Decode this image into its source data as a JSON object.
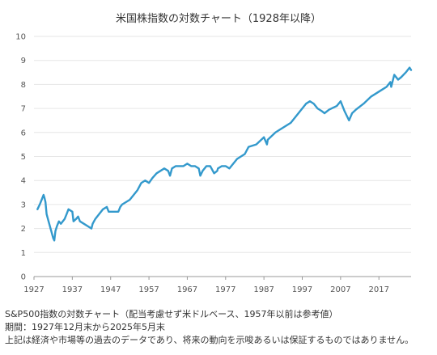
{
  "chart_data": {
    "type": "line",
    "title": "米国株指数の対数チャート（1928年以降）",
    "xlabel": "",
    "ylabel": "",
    "xlim": [
      1927,
      2025.4
    ],
    "ylim": [
      0,
      10
    ],
    "x_ticks": [
      "1927",
      "1937",
      "1947",
      "1957",
      "1967",
      "1977",
      "1987",
      "1997",
      "2007",
      "2017"
    ],
    "y_ticks": [
      "0",
      "1",
      "2",
      "3",
      "4",
      "5",
      "6",
      "7",
      "8",
      "9",
      "10"
    ],
    "grid": "horizontal",
    "legend": "none",
    "series": [
      {
        "color": "#3399cc",
        "x": [
          1927.9,
          1928.5,
          1929.0,
          1929.5,
          1929.7,
          1930.0,
          1930.3,
          1930.8,
          1931.5,
          1932.0,
          1932.3,
          1932.6,
          1933.0,
          1933.5,
          1934.0,
          1935.0,
          1935.5,
          1936.0,
          1937.0,
          1937.3,
          1938.0,
          1938.5,
          1939.0,
          1940.0,
          1941.0,
          1942.0,
          1942.3,
          1943.0,
          1944.0,
          1945.0,
          1946.0,
          1946.5,
          1947.0,
          1948.0,
          1949.0,
          1949.5,
          1950.0,
          1952.0,
          1954.0,
          1955.0,
          1956.0,
          1957.0,
          1957.9,
          1959.0,
          1961.0,
          1962.0,
          1962.5,
          1963.0,
          1964.0,
          1966.0,
          1967.0,
          1968.0,
          1969.0,
          1970.0,
          1970.4,
          1971.0,
          1972.0,
          1973.0,
          1974.0,
          1974.8,
          1975.0,
          1976.0,
          1977.0,
          1978.0,
          1980.0,
          1982.0,
          1983.0,
          1985.0,
          1987.0,
          1987.8,
          1988.0,
          1990.0,
          1991.0,
          1994.0,
          1996.0,
          1998.0,
          1999.0,
          2000.0,
          2001.0,
          2002.0,
          2002.8,
          2004.0,
          2006.0,
          2007.0,
          2008.0,
          2009.2,
          2010.0,
          2011.0,
          2013.0,
          2015.0,
          2016.0,
          2018.0,
          2019.0,
          2020.0,
          2020.2,
          2021.0,
          2022.0,
          2022.8,
          2024.0,
          2025.0,
          2025.4
        ],
        "y": [
          2.8,
          3.0,
          3.2,
          3.4,
          3.3,
          3.1,
          2.6,
          2.3,
          1.9,
          1.6,
          1.5,
          1.9,
          2.1,
          2.3,
          2.2,
          2.4,
          2.6,
          2.8,
          2.7,
          2.3,
          2.4,
          2.5,
          2.3,
          2.2,
          2.1,
          2.0,
          2.2,
          2.4,
          2.6,
          2.8,
          2.9,
          2.7,
          2.7,
          2.7,
          2.7,
          2.9,
          3.0,
          3.2,
          3.6,
          3.9,
          4.0,
          3.9,
          4.1,
          4.3,
          4.5,
          4.4,
          4.2,
          4.5,
          4.6,
          4.6,
          4.7,
          4.6,
          4.6,
          4.5,
          4.2,
          4.4,
          4.6,
          4.6,
          4.3,
          4.4,
          4.5,
          4.6,
          4.6,
          4.5,
          4.9,
          5.1,
          5.4,
          5.5,
          5.8,
          5.5,
          5.7,
          6.0,
          6.1,
          6.4,
          6.8,
          7.2,
          7.3,
          7.2,
          7.0,
          6.9,
          6.8,
          6.95,
          7.1,
          7.3,
          6.9,
          6.5,
          6.8,
          6.95,
          7.2,
          7.5,
          7.6,
          7.8,
          7.9,
          8.1,
          7.9,
          8.4,
          8.2,
          8.3,
          8.5,
          8.7,
          8.6
        ]
      }
    ]
  },
  "notes": [
    "S&P500指数の対数チャート（配当考慮せず米ドルベース、1957年以前は参考値）",
    "期間：1927年12月末から2025年5月末",
    "上記は経済や市場等の過去のデータであり、将来の動向を示唆あるいは保証するものではありません。"
  ]
}
